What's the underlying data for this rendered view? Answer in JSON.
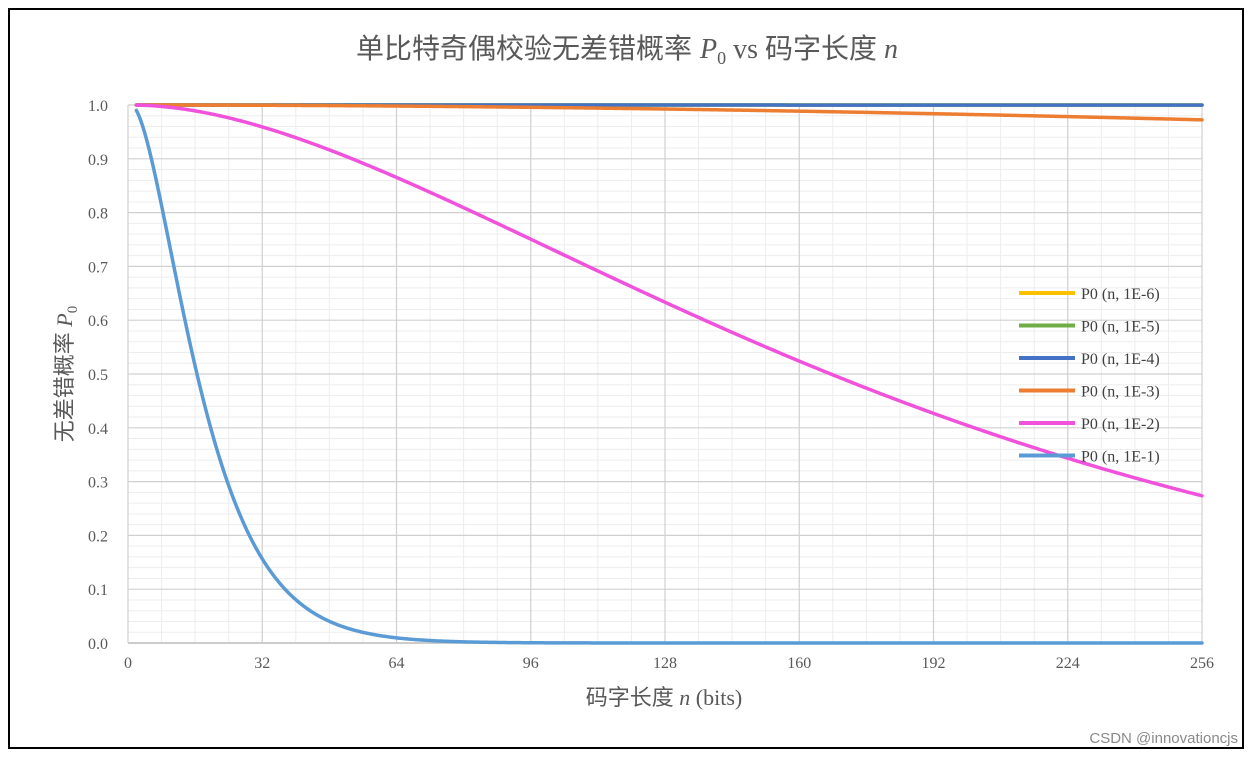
{
  "chart_data": {
    "type": "line",
    "title": "单比特奇偶校验无差错概率",
    "title_math": "P",
    "title_math_sub": "0",
    "title_suffix": " vs 码字长度 ",
    "title_suffix_math": "n",
    "xlabel": "码字长度 ",
    "xlabel_math": "n",
    "xlabel_suffix": " (bits)",
    "ylabel": "无差错概率 ",
    "ylabel_math": "P",
    "ylabel_math_sub": "0",
    "xlim": [
      0,
      256
    ],
    "ylim": [
      0,
      1
    ],
    "xticks": [
      0,
      32,
      64,
      96,
      128,
      160,
      192,
      224,
      256
    ],
    "yticks": [
      "0.0",
      "0.1",
      "0.2",
      "0.3",
      "0.4",
      "0.5",
      "0.6",
      "0.7",
      "0.8",
      "0.9",
      "1.0"
    ],
    "grid": true,
    "legend_position": "right",
    "x_start": 2,
    "x_end": 256,
    "formula": "(1-p)^n + n*p*(1-p)^(n-1)",
    "series": [
      {
        "name": "P0 (n, 1E-6)",
        "p": 1e-06,
        "color": "#FFC000"
      },
      {
        "name": "P0 (n, 1E-5)",
        "p": 1e-05,
        "color": "#70AD47"
      },
      {
        "name": "P0 (n, 1E-4)",
        "p": 0.0001,
        "color": "#4472C4"
      },
      {
        "name": "P0 (n, 1E-3)",
        "p": 0.001,
        "color": "#ED7D31"
      },
      {
        "name": "P0 (n, 1E-2)",
        "p": 0.01,
        "color": "#F052DC"
      },
      {
        "name": "P0 (n, 1E-1)",
        "p": 0.1,
        "color": "#5B9BD5"
      }
    ]
  },
  "watermark": "CSDN @innovationcjs"
}
